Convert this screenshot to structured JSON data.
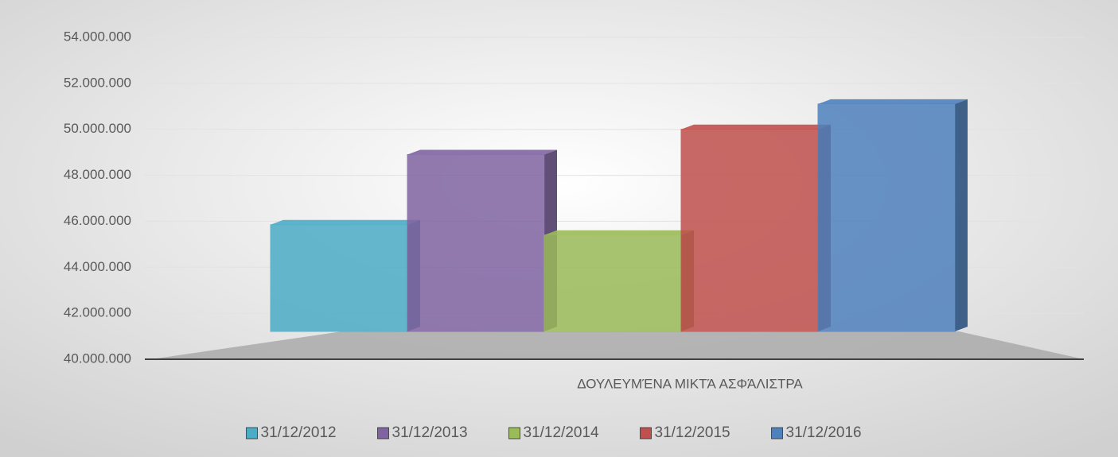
{
  "chart_data": {
    "type": "bar",
    "categories": [
      "ΔΟΥΛΕΥΜΈΝΑ ΜΙΚΤΆ ΑΣΦΆΛΙΣΤΡΑ"
    ],
    "series": [
      {
        "name": "31/12/2012",
        "color": "#4bacc6",
        "values": [
          45850000
        ]
      },
      {
        "name": "31/12/2013",
        "color": "#8064a2",
        "values": [
          48900000
        ]
      },
      {
        "name": "31/12/2014",
        "color": "#9bbb59",
        "values": [
          45400000
        ]
      },
      {
        "name": "31/12/2015",
        "color": "#c0504d",
        "values": [
          50000000
        ]
      },
      {
        "name": "31/12/2016",
        "color": "#4f81bd",
        "values": [
          51100000
        ]
      }
    ],
    "ylim": [
      40000000,
      54000000
    ],
    "yticks": [
      {
        "value": 40000000,
        "label": "40.000.000"
      },
      {
        "value": 42000000,
        "label": "42.000.000"
      },
      {
        "value": 44000000,
        "label": "44.000.000"
      },
      {
        "value": 46000000,
        "label": "46.000.000"
      },
      {
        "value": 48000000,
        "label": "48.000.000"
      },
      {
        "value": 50000000,
        "label": "50.000.000"
      },
      {
        "value": 52000000,
        "label": "52.000.000"
      },
      {
        "value": 54000000,
        "label": "54.000.000"
      }
    ],
    "grid": true,
    "legend": "bottom"
  }
}
